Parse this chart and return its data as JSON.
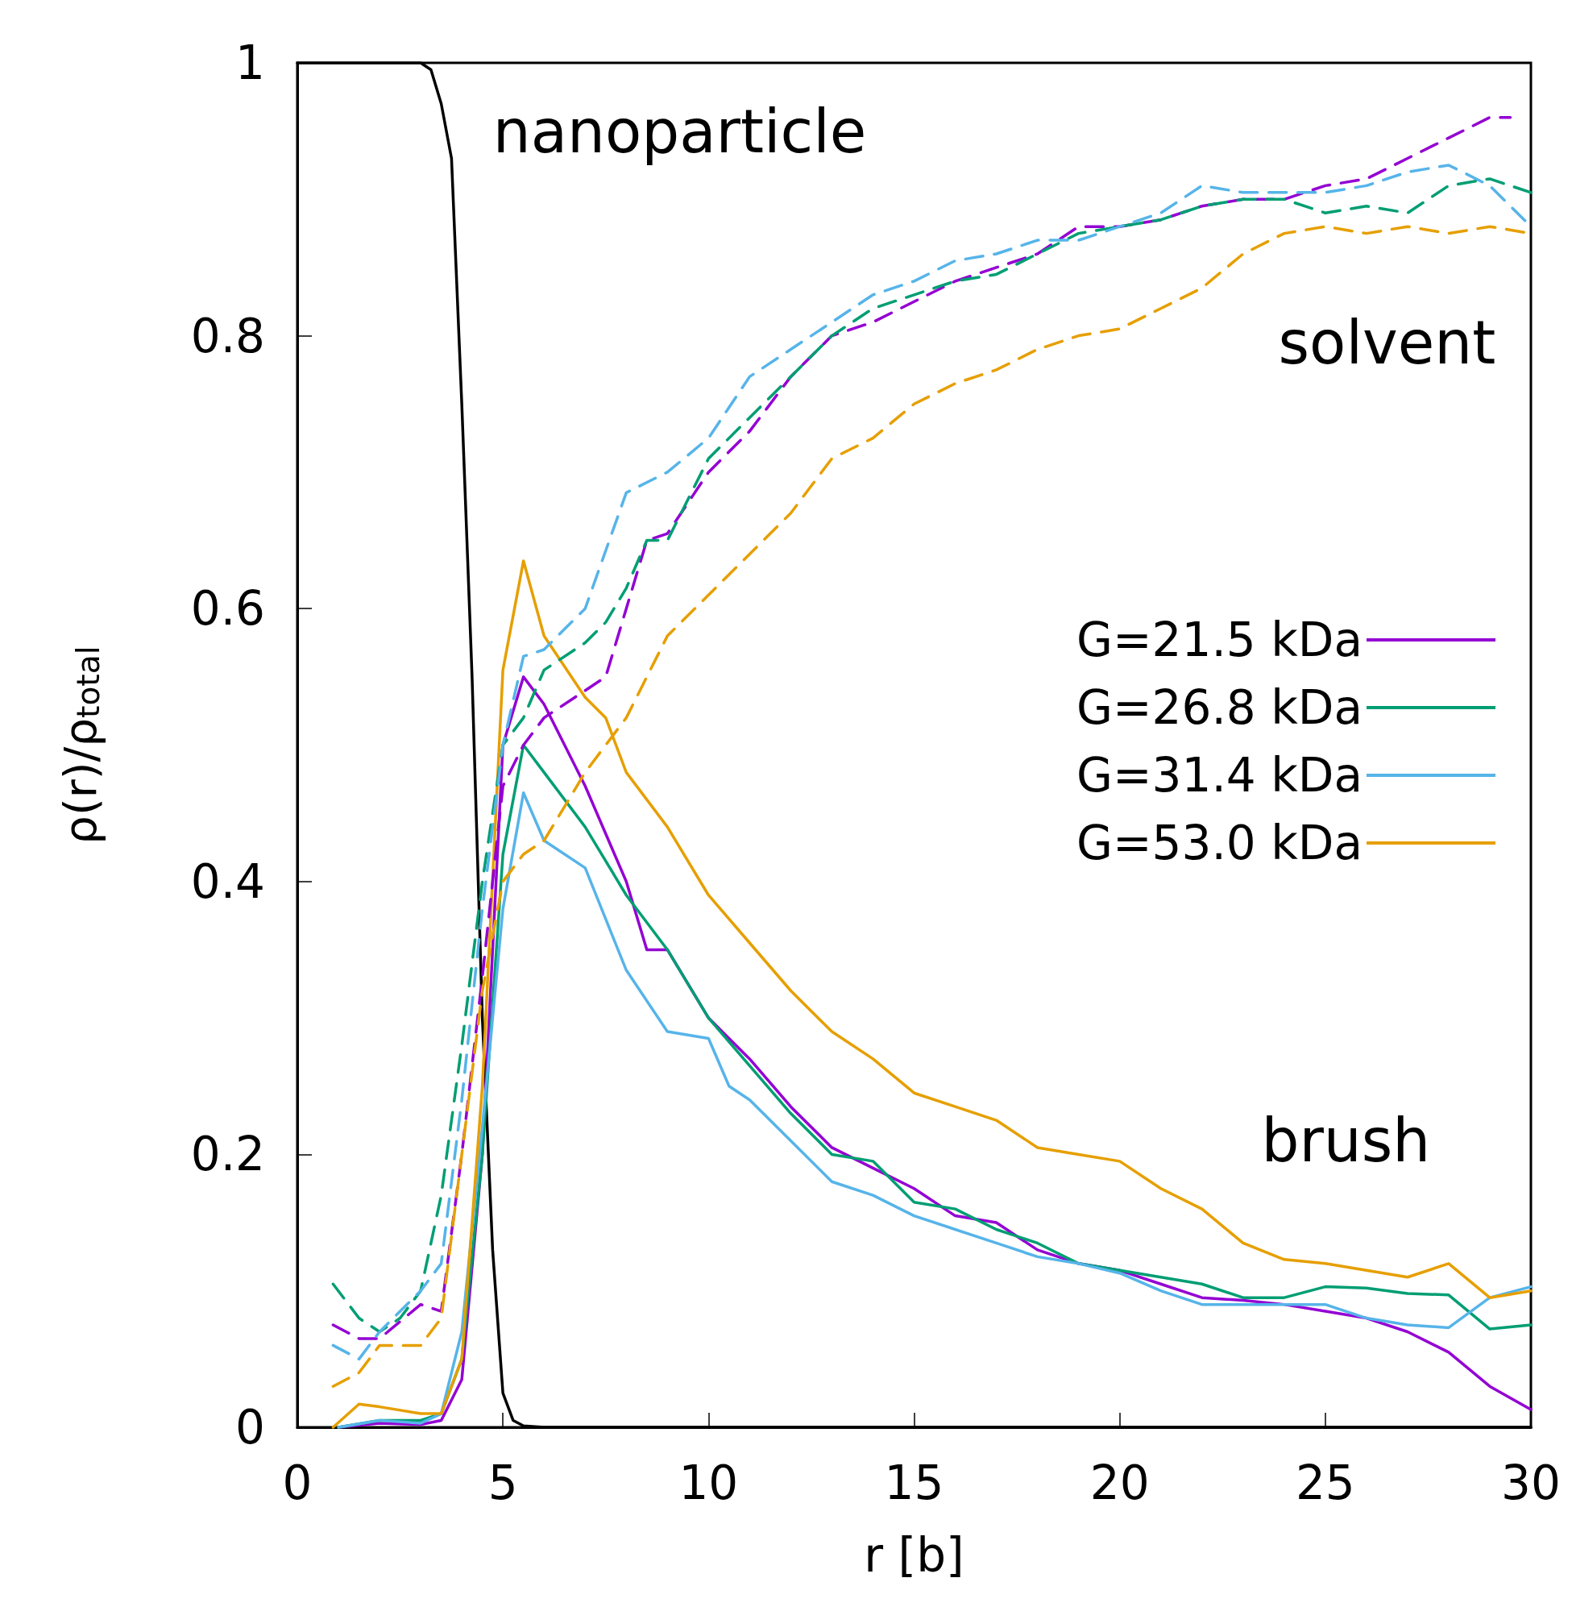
{
  "chart_data": {
    "type": "line",
    "xlabel": "r [b]",
    "ylabel": "ρ(r)/ρ$_{total}$",
    "xlim": [
      0,
      30
    ],
    "xticks": [
      0,
      5,
      10,
      15,
      20,
      25,
      30
    ],
    "ylim": [
      0,
      1
    ],
    "yticks": [
      0,
      0.2,
      0.4,
      0.6,
      0.8,
      1
    ],
    "grid": false,
    "legend": "right",
    "marker": "none",
    "annotations": [
      "nanoparticle",
      "solvent",
      "brush"
    ],
    "series": [
      {
        "name": "G=21.5 kDa",
        "color": "#9400d3",
        "line_style": "solid",
        "x": [
          1,
          2,
          3,
          3.5,
          4,
          4.5,
          5,
          5.5,
          6,
          7,
          8,
          8.5,
          9,
          10,
          11,
          12,
          13,
          14,
          15,
          16,
          17,
          18,
          19,
          20,
          21,
          22,
          23,
          24,
          25,
          26,
          27,
          28,
          29,
          30
        ],
        "values": [
          0,
          0.003,
          0.002,
          0.005,
          0.035,
          0.2,
          0.5,
          0.55,
          0.53,
          0.47,
          0.4,
          0.35,
          0.35,
          0.3,
          0.27,
          0.235,
          0.205,
          0.19,
          0.175,
          0.155,
          0.15,
          0.13,
          0.12,
          0.115,
          0.105,
          0.095,
          0.093,
          0.09,
          0.085,
          0.08,
          0.07,
          0.055,
          0.03,
          0.013
        ]
      },
      {
        "name": "G=26.8 kDa",
        "color": "#009e73",
        "line_style": "solid",
        "x": [
          1,
          2,
          3,
          3.5,
          4,
          4.5,
          5,
          5.5,
          6,
          7,
          8,
          9,
          10,
          11,
          12,
          13,
          14,
          15,
          16,
          17,
          18,
          19,
          20,
          21,
          22,
          23,
          24,
          25,
          26,
          27,
          28,
          29,
          30
        ],
        "values": [
          0,
          0.005,
          0.005,
          0.01,
          0.05,
          0.2,
          0.42,
          0.5,
          0.48,
          0.44,
          0.39,
          0.35,
          0.3,
          0.265,
          0.23,
          0.2,
          0.195,
          0.165,
          0.16,
          0.145,
          0.135,
          0.12,
          0.115,
          0.11,
          0.105,
          0.095,
          0.095,
          0.103,
          0.102,
          0.098,
          0.097,
          0.072,
          0.075
        ]
      },
      {
        "name": "G=31.4 kDa",
        "color": "#56b4e9",
        "line_style": "solid",
        "x": [
          1,
          2,
          3,
          3.5,
          4,
          4.5,
          5,
          5.5,
          6,
          7,
          8,
          9,
          10,
          10.5,
          11,
          12,
          13,
          14,
          15,
          16,
          17,
          18,
          19,
          20,
          21,
          22,
          23,
          24,
          25,
          26,
          27,
          28,
          29,
          30
        ],
        "values": [
          0,
          0.005,
          0.003,
          0.01,
          0.07,
          0.22,
          0.38,
          0.465,
          0.43,
          0.41,
          0.335,
          0.29,
          0.285,
          0.25,
          0.24,
          0.21,
          0.18,
          0.17,
          0.155,
          0.145,
          0.135,
          0.125,
          0.12,
          0.113,
          0.1,
          0.09,
          0.09,
          0.09,
          0.09,
          0.08,
          0.075,
          0.073,
          0.095,
          0.103
        ]
      },
      {
        "name": "G=53.0 kDa",
        "color": "#e69f00",
        "line_style": "solid",
        "x": [
          0.87,
          1.5,
          2,
          3,
          3.5,
          4,
          4.5,
          5,
          5.5,
          6,
          7,
          7.5,
          8,
          9,
          10,
          11,
          12,
          13,
          14,
          15,
          16,
          17,
          18,
          19,
          20,
          21,
          22,
          23,
          24,
          25,
          26,
          27,
          28,
          29,
          30
        ],
        "values": [
          0,
          0.017,
          0.015,
          0.01,
          0.01,
          0.05,
          0.25,
          0.555,
          0.635,
          0.58,
          0.535,
          0.52,
          0.48,
          0.44,
          0.39,
          0.355,
          0.32,
          0.29,
          0.27,
          0.245,
          0.235,
          0.225,
          0.205,
          0.2,
          0.195,
          0.175,
          0.16,
          0.135,
          0.123,
          0.12,
          0.115,
          0.11,
          0.12,
          0.095,
          0.1
        ]
      },
      {
        "color": "#9400d3",
        "line_style": "dashed",
        "x": [
          0.87,
          1.5,
          2,
          3,
          3.5,
          4,
          4.5,
          5,
          5.5,
          6,
          7,
          7.5,
          8,
          8.5,
          9,
          10,
          11,
          12,
          13,
          14,
          15,
          16,
          17,
          18,
          19,
          20,
          21,
          22,
          23,
          24,
          25,
          26,
          27,
          28,
          29,
          29.5
        ],
        "values": [
          0.075,
          0.065,
          0.065,
          0.09,
          0.085,
          0.2,
          0.33,
          0.47,
          0.5,
          0.52,
          0.54,
          0.55,
          0.6,
          0.65,
          0.655,
          0.7,
          0.73,
          0.77,
          0.8,
          0.81,
          0.825,
          0.84,
          0.85,
          0.86,
          0.88,
          0.88,
          0.885,
          0.895,
          0.9,
          0.9,
          0.91,
          0.915,
          0.93,
          0.945,
          0.96,
          0.96
        ]
      },
      {
        "color": "#009e73",
        "line_style": "dashed",
        "x": [
          0.87,
          1.5,
          2,
          2.5,
          3,
          3.5,
          4,
          4.5,
          5,
          5.5,
          6,
          7,
          7.5,
          8,
          8.5,
          9,
          10,
          11,
          12,
          13,
          14,
          15,
          16,
          17,
          18,
          19,
          20,
          21,
          22,
          23,
          24,
          25,
          26,
          27,
          28,
          29,
          30
        ],
        "values": [
          0.105,
          0.08,
          0.07,
          0.08,
          0.1,
          0.17,
          0.28,
          0.4,
          0.5,
          0.52,
          0.555,
          0.575,
          0.59,
          0.615,
          0.65,
          0.65,
          0.71,
          0.74,
          0.77,
          0.8,
          0.82,
          0.83,
          0.84,
          0.845,
          0.86,
          0.875,
          0.88,
          0.885,
          0.895,
          0.9,
          0.9,
          0.89,
          0.895,
          0.89,
          0.91,
          0.915,
          0.905
        ]
      },
      {
        "color": "#56b4e9",
        "line_style": "dashed",
        "x": [
          0.87,
          1.5,
          2,
          3,
          3.5,
          4,
          4.5,
          5,
          5.5,
          6,
          7,
          8,
          9,
          10,
          11,
          12,
          13,
          14,
          15,
          16,
          17,
          18,
          19,
          20,
          21,
          22,
          23,
          24,
          25,
          26,
          27,
          28,
          29,
          30
        ],
        "values": [
          0.06,
          0.05,
          0.07,
          0.1,
          0.12,
          0.24,
          0.38,
          0.5,
          0.565,
          0.57,
          0.6,
          0.685,
          0.7,
          0.725,
          0.77,
          0.79,
          0.81,
          0.83,
          0.84,
          0.855,
          0.86,
          0.87,
          0.87,
          0.88,
          0.89,
          0.91,
          0.905,
          0.905,
          0.905,
          0.91,
          0.92,
          0.925,
          0.91,
          0.88
        ]
      },
      {
        "color": "#e69f00",
        "line_style": "dashed",
        "x": [
          0.87,
          1.5,
          2,
          3,
          3.5,
          4,
          4.5,
          5,
          5.5,
          6,
          7,
          8,
          9,
          10,
          11,
          12,
          13,
          14,
          15,
          16,
          17,
          18,
          19,
          20,
          21,
          22,
          23,
          24,
          25,
          26,
          27,
          28,
          29,
          30
        ],
        "values": [
          0.03,
          0.04,
          0.06,
          0.06,
          0.08,
          0.2,
          0.32,
          0.4,
          0.42,
          0.43,
          0.48,
          0.52,
          0.58,
          0.61,
          0.64,
          0.67,
          0.71,
          0.725,
          0.75,
          0.765,
          0.775,
          0.79,
          0.8,
          0.805,
          0.82,
          0.835,
          0.86,
          0.875,
          0.88,
          0.875,
          0.88,
          0.875,
          0.88,
          0.875
        ]
      },
      {
        "color": "#000000",
        "line_style": "solid",
        "x": [
          0,
          3,
          3.25,
          3.5,
          3.75,
          4,
          4.25,
          4.5,
          4.75,
          5,
          5.25,
          5.5,
          6,
          30
        ],
        "values": [
          1,
          1,
          0.995,
          0.97,
          0.93,
          0.75,
          0.55,
          0.3,
          0.13,
          0.025,
          0.005,
          0.001,
          0,
          0
        ]
      }
    ]
  }
}
